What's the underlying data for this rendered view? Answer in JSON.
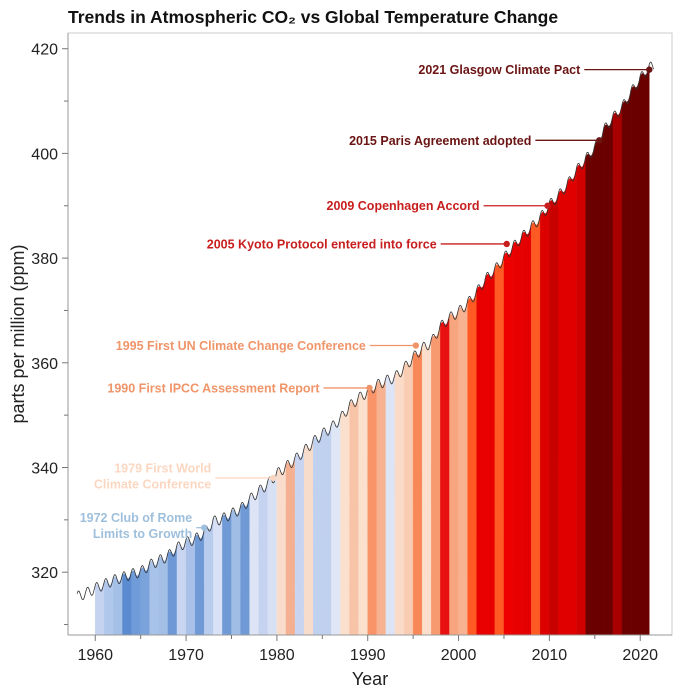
{
  "chart_data": {
    "type": "area",
    "title": "Trends in Atmospheric CO₂ vs Global Temperature Change",
    "xlabel": "Year",
    "ylabel": "parts per million (ppm)",
    "xlim": [
      1957,
      2023.5
    ],
    "ylim": [
      308,
      423
    ],
    "x_ticks": [
      1960,
      1970,
      1980,
      1990,
      2000,
      2010,
      2020
    ],
    "y_ticks": [
      320,
      340,
      360,
      380,
      400,
      420
    ],
    "grid": false,
    "co2_series": {
      "years": [
        1958,
        1959,
        1960,
        1961,
        1962,
        1963,
        1964,
        1965,
        1966,
        1967,
        1968,
        1969,
        1970,
        1971,
        1972,
        1973,
        1974,
        1975,
        1976,
        1977,
        1978,
        1979,
        1980,
        1981,
        1982,
        1983,
        1984,
        1985,
        1986,
        1987,
        1988,
        1989,
        1990,
        1991,
        1992,
        1993,
        1994,
        1995,
        1996,
        1997,
        1998,
        1999,
        2000,
        2001,
        2002,
        2003,
        2004,
        2005,
        2006,
        2007,
        2008,
        2009,
        2010,
        2011,
        2012,
        2013,
        2014,
        2015,
        2016,
        2017,
        2018,
        2019,
        2020,
        2021
      ],
      "ppm": [
        315.3,
        315.98,
        316.91,
        317.64,
        318.45,
        318.99,
        319.62,
        320.04,
        321.37,
        322.18,
        323.05,
        324.62,
        325.68,
        326.32,
        327.46,
        329.68,
        330.19,
        331.13,
        332.03,
        333.84,
        335.41,
        336.84,
        338.76,
        340.12,
        341.48,
        343.15,
        344.87,
        346.35,
        347.61,
        349.31,
        351.69,
        353.2,
        354.45,
        355.7,
        356.54,
        357.21,
        358.96,
        360.97,
        362.74,
        363.88,
        366.84,
        368.54,
        369.71,
        371.32,
        373.45,
        375.98,
        377.7,
        379.98,
        382.09,
        384.02,
        385.83,
        387.64,
        390.1,
        391.85,
        394.06,
        396.74,
        398.81,
        401.01,
        404.41,
        406.76,
        408.72,
        411.66,
        414.24,
        416.45
      ]
    },
    "temperature_stripes": {
      "start_year": 1960,
      "colors": [
        "#c5d3f0",
        "#b0c8ec",
        "#a5c0e6",
        "#5a8ad0",
        "#6f9bd8",
        "#7aa3dc",
        "#a8c2e8",
        "#a3bfe6",
        "#6e98d6",
        "#c9d6f2",
        "#a9c1e8",
        "#6f9ad6",
        "#b8ccee",
        "#d8e1f5",
        "#6f9ad6",
        "#a0bde6",
        "#6f9ad6",
        "#dde4f5",
        "#c6d3f0",
        "#d8e0f4",
        "#f9dccc",
        "#f4b090",
        "#c9d5f0",
        "#f8dccb",
        "#c0d0ef",
        "#c0d0ef",
        "#dfe6f6",
        "#fbe0cd",
        "#f8c4a8",
        "#fbe0cd",
        "#f89468",
        "#f7b291",
        "#dde4f5",
        "#fadbc8",
        "#f9cdb4",
        "#f88858",
        "#fbdfcc",
        "#f89a70",
        "#e81010",
        "#f7a57e",
        "#f7b292",
        "#ff5a24",
        "#e80000",
        "#e80000",
        "#ff5a24",
        "#ee0000",
        "#e80000",
        "#e40000",
        "#ff5a24",
        "#dd0000",
        "#c80000",
        "#e00000",
        "#e00000",
        "#d00000",
        "#6a0000",
        "#6a0000",
        "#6a0000",
        "#a80000",
        "#6a0000",
        "#6a0000",
        "#6a0000"
      ]
    },
    "annotations": [
      {
        "year": 2021,
        "ppm": 416,
        "lines": [
          "2021 Glasgow Climate Pact"
        ],
        "color": "#6b1414"
      },
      {
        "year": 2015.5,
        "ppm": 402.5,
        "lines": [
          "2015 Paris Agreement adopted"
        ],
        "color": "#6b1414"
      },
      {
        "year": 2009.8,
        "ppm": 390,
        "lines": [
          "2009 Copenhagen Accord"
        ],
        "color": "#c81e1e"
      },
      {
        "year": 2005.3,
        "ppm": 382.7,
        "lines": [
          "2005 Kyoto Protocol entered into force"
        ],
        "color": "#c81e1e"
      },
      {
        "year": 1995.3,
        "ppm": 363.3,
        "lines": [
          "1995 First UN Climate Change Conference"
        ],
        "color": "#f0956a"
      },
      {
        "year": 1990.2,
        "ppm": 355.2,
        "lines": [
          "1990 First IPCC Assessment Report"
        ],
        "color": "#f0956a"
      },
      {
        "year": 1979.6,
        "ppm": 338,
        "lines": [
          "1979 First World",
          "Climate Conference"
        ],
        "color": "#fbd7c2"
      },
      {
        "year": 1972,
        "ppm": 328.5,
        "lines": [
          "1972 Club of Rome",
          "Limits to Growth"
        ],
        "color": "#9fc0dc"
      }
    ]
  }
}
